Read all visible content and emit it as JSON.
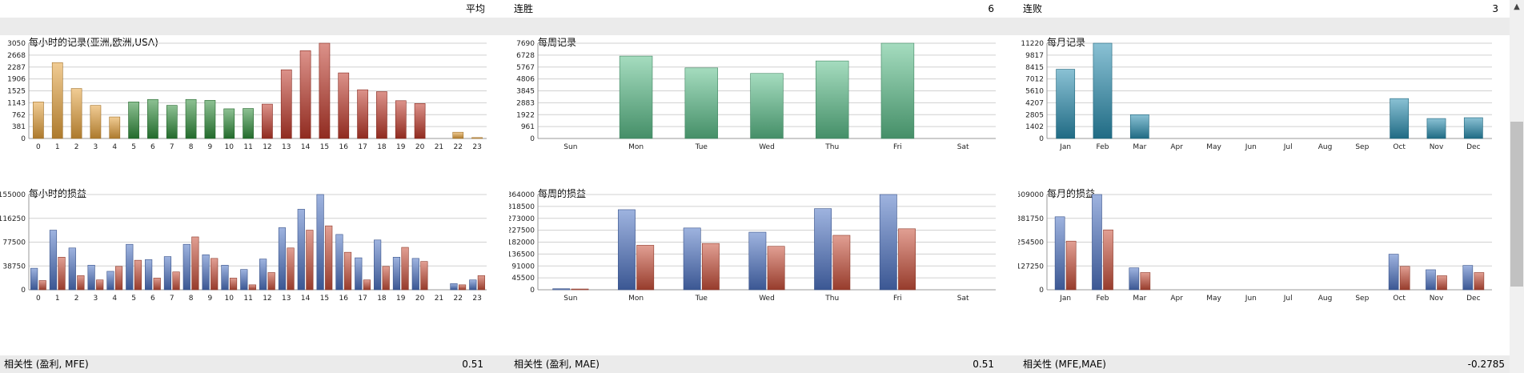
{
  "header": {
    "avg_label": "平均",
    "win_streak_label": "连胜",
    "win_streak_value": "6",
    "loss_streak_label": "连败",
    "loss_streak_value": "3"
  },
  "footer": {
    "corr1_label": "相关性 (盈利, MFE)",
    "corr1_value": "0.51",
    "corr2_label": "相关性 (盈利, MAE)",
    "corr2_value": "0.51",
    "corr3_label": "相关性 (MFE,MAE)",
    "corr3_value": "-0.2785"
  },
  "colors": {
    "orange": "#e6a23c",
    "green": "#2f8f3a",
    "red": "#c0392b",
    "mint": "#5cbf8a",
    "teal": "#2a8fb0",
    "blue": "#4f74c4",
    "rust": "#c9503a"
  },
  "scrollbar": {
    "up_icon": "▲"
  },
  "chart_data": [
    {
      "id": "hourly_records",
      "type": "bar",
      "title": "每小时的记录(亚洲,欧洲,USA)",
      "categories": [
        "0",
        "1",
        "2",
        "3",
        "4",
        "5",
        "6",
        "7",
        "8",
        "9",
        "10",
        "11",
        "12",
        "13",
        "14",
        "15",
        "16",
        "17",
        "18",
        "19",
        "20",
        "21",
        "22",
        "23"
      ],
      "yticks": [
        "0",
        "381",
        "762",
        "1143",
        "1525",
        "1906",
        "2287",
        "2668",
        "3050"
      ],
      "ylim": [
        0,
        3050
      ],
      "series": [
        {
          "values": [
            1170,
            2430,
            1600,
            1060,
            690,
            1170,
            1250,
            1060,
            1250,
            1220,
            950,
            960,
            1100,
            2200,
            2810,
            3050,
            2100,
            1560,
            1500,
            1210,
            1120,
            0,
            200,
            30
          ],
          "colors": [
            "orange",
            "orange",
            "orange",
            "orange",
            "orange",
            "green",
            "green",
            "green",
            "green",
            "green",
            "green",
            "green",
            "red",
            "red",
            "red",
            "red",
            "red",
            "red",
            "red",
            "red",
            "red",
            "red",
            "orange",
            "orange"
          ]
        }
      ]
    },
    {
      "id": "weekly_records",
      "type": "bar",
      "title": "每周记录",
      "categories": [
        "Sun",
        "Mon",
        "Tue",
        "Wed",
        "Thu",
        "Fri",
        "Sat"
      ],
      "yticks": [
        "0",
        "961",
        "1922",
        "2883",
        "3845",
        "4806",
        "5767",
        "6728",
        "7690"
      ],
      "ylim": [
        0,
        7690
      ],
      "series": [
        {
          "values": [
            0,
            6650,
            5700,
            5250,
            6260,
            7690,
            0
          ],
          "colors": [
            "mint"
          ]
        }
      ]
    },
    {
      "id": "monthly_records",
      "type": "bar",
      "title": "每月记录",
      "categories": [
        "Jan",
        "Feb",
        "Mar",
        "Apr",
        "May",
        "Jun",
        "Jul",
        "Aug",
        "Sep",
        "Oct",
        "Nov",
        "Dec"
      ],
      "yticks": [
        "0",
        "1402",
        "2805",
        "4207",
        "5610",
        "7012",
        "8415",
        "9817",
        "11220"
      ],
      "ylim": [
        0,
        11220
      ],
      "series": [
        {
          "values": [
            8150,
            11220,
            2800,
            0,
            0,
            0,
            0,
            0,
            0,
            4700,
            2350,
            2450
          ],
          "colors": [
            "teal"
          ]
        }
      ]
    },
    {
      "id": "hourly_pnl",
      "type": "bar",
      "title": "每小时的损益",
      "categories": [
        "0",
        "1",
        "2",
        "3",
        "4",
        "5",
        "6",
        "7",
        "8",
        "9",
        "10",
        "11",
        "12",
        "13",
        "14",
        "15",
        "16",
        "17",
        "18",
        "19",
        "20",
        "21",
        "22",
        "23"
      ],
      "yticks": [
        "0",
        "38750",
        "77500",
        "116250",
        "155000"
      ],
      "ylim": [
        0,
        155000
      ],
      "series": [
        {
          "values": [
            35000,
            97000,
            68000,
            40000,
            30000,
            74000,
            49000,
            54000,
            74000,
            57000,
            40000,
            33000,
            50000,
            101000,
            131000,
            155000,
            90000,
            52000,
            81000,
            53000,
            51000,
            0,
            10000,
            16000
          ],
          "colors": [
            "blue"
          ]
        },
        {
          "values": [
            15000,
            53000,
            23000,
            16000,
            38000,
            48000,
            19000,
            29000,
            86000,
            51000,
            19000,
            8000,
            28000,
            68000,
            97000,
            104000,
            61000,
            16000,
            38000,
            69000,
            46000,
            0,
            8000,
            23000
          ],
          "colors": [
            "rust"
          ]
        }
      ]
    },
    {
      "id": "weekly_pnl",
      "type": "bar",
      "title": "每周的损益",
      "categories": [
        "Sun",
        "Mon",
        "Tue",
        "Wed",
        "Thu",
        "Fri",
        "Sat"
      ],
      "yticks": [
        "0",
        "45500",
        "91000",
        "136500",
        "182000",
        "227500",
        "273000",
        "318500",
        "364000"
      ],
      "ylim": [
        0,
        364000
      ],
      "series": [
        {
          "values": [
            4000,
            306000,
            236000,
            220000,
            310000,
            364000,
            0
          ],
          "colors": [
            "blue"
          ]
        },
        {
          "values": [
            3000,
            170000,
            177000,
            166000,
            208000,
            233000,
            0
          ],
          "colors": [
            "rust"
          ]
        }
      ]
    },
    {
      "id": "monthly_pnl",
      "type": "bar",
      "title": "每月的损益",
      "categories": [
        "Jan",
        "Feb",
        "Mar",
        "Apr",
        "May",
        "Jun",
        "Jul",
        "Aug",
        "Sep",
        "Oct",
        "Nov",
        "Dec"
      ],
      "yticks": [
        "0",
        "127250",
        "254500",
        "381750",
        "509000"
      ],
      "ylim": [
        0,
        509000
      ],
      "series": [
        {
          "values": [
            390000,
            509000,
            117000,
            0,
            0,
            0,
            0,
            0,
            0,
            190000,
            107000,
            130000
          ],
          "colors": [
            "blue"
          ]
        },
        {
          "values": [
            260000,
            320000,
            92000,
            0,
            0,
            0,
            0,
            0,
            0,
            125000,
            75000,
            92000
          ],
          "colors": [
            "rust"
          ]
        }
      ]
    }
  ]
}
